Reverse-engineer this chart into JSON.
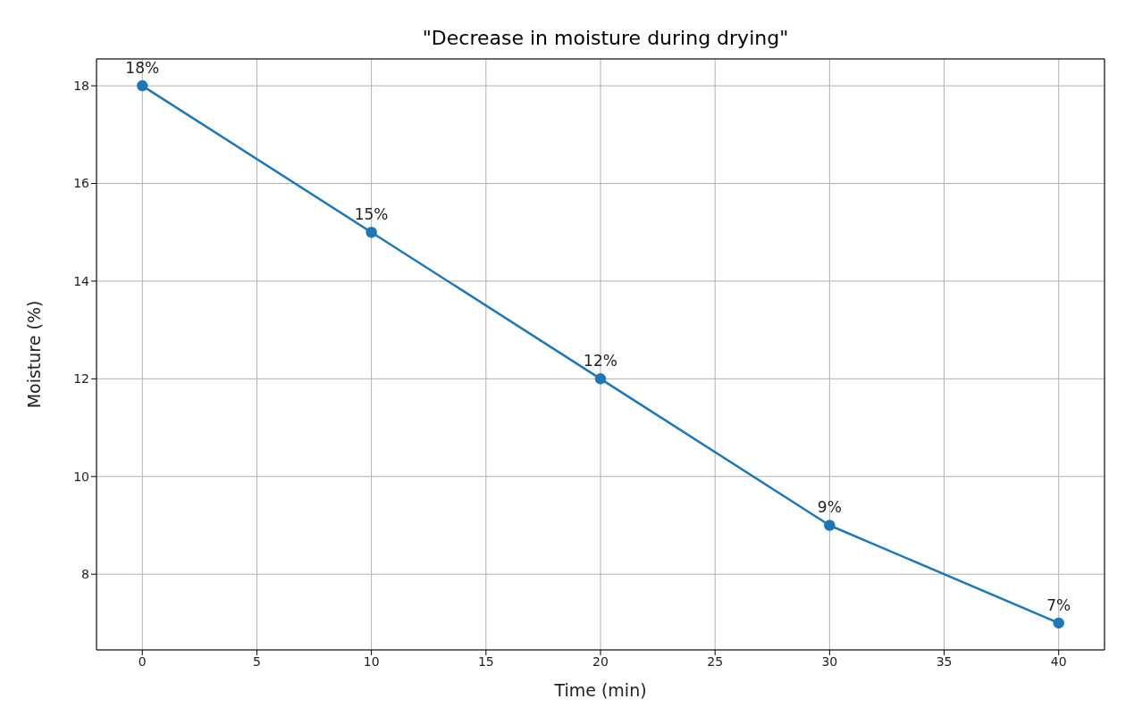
{
  "chart_data": {
    "type": "line",
    "title": "\"Decrease in moisture during drying\"",
    "xlabel": "Time (min)",
    "ylabel": "Moisture (%)",
    "x": [
      0,
      10,
      20,
      30,
      40
    ],
    "series": [
      {
        "color": "#1f77b4",
        "values": [
          18,
          15,
          12,
          9,
          7
        ],
        "value_labels": [
          "18%",
          "15%",
          "12%",
          "9%",
          "7%"
        ]
      }
    ],
    "xlim": [
      -2,
      42
    ],
    "xticks": [
      0,
      5,
      10,
      15,
      20,
      25,
      30,
      35,
      40
    ],
    "ylim": [
      6.45,
      18.55
    ],
    "yticks": [
      8,
      10,
      12,
      14,
      16,
      18
    ],
    "grid": true,
    "marker": "circle",
    "line_style": "solid",
    "legend": false
  }
}
